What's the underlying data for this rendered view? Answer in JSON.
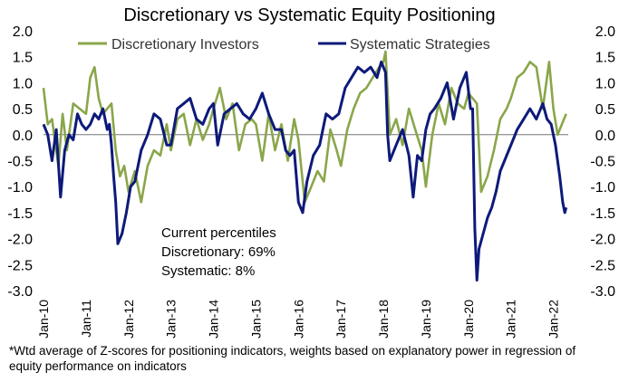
{
  "chart_data": {
    "type": "line",
    "title": "Discretionary  vs Systematic Equity Positioning",
    "ylim": [
      -3.0,
      2.0
    ],
    "y_ticks": [
      "2.0",
      "1.5",
      "1.0",
      "0.5",
      "0.0",
      "-0.5",
      "-1.0",
      "-1.5",
      "-2.0",
      "-2.5",
      "-3.0"
    ],
    "x_range": [
      2010.0,
      2022.35
    ],
    "x_ticks": [
      "Jan-10",
      "Jan-11",
      "Jan-12",
      "Jan-13",
      "Jan-14",
      "Jan-15",
      "Jan-16",
      "Jan-17",
      "Jan-18",
      "Jan-19",
      "Jan-20",
      "Jan-21",
      "Jan-22"
    ],
    "legend": [
      "Discretionary Investors",
      "Systematic Strategies"
    ],
    "colors": {
      "discretionary": "#8aa64a",
      "systematic": "#0d1a7a",
      "zero_line": "#777777"
    },
    "annotation": [
      "Current percentiles",
      "Discretionary: 69%",
      "Systematic: 8%"
    ],
    "series": [
      {
        "name": "Discretionary Investors",
        "x": [
          2010.0,
          2010.1,
          2010.2,
          2010.35,
          2010.45,
          2010.55,
          2010.7,
          2010.85,
          2011.0,
          2011.1,
          2011.2,
          2011.3,
          2011.4,
          2011.5,
          2011.6,
          2011.7,
          2011.8,
          2011.9,
          2012.0,
          2012.15,
          2012.3,
          2012.45,
          2012.6,
          2012.75,
          2012.9,
          2013.0,
          2013.15,
          2013.3,
          2013.45,
          2013.6,
          2013.75,
          2013.9,
          2014.0,
          2014.15,
          2014.3,
          2014.45,
          2014.6,
          2014.75,
          2014.9,
          2015.0,
          2015.15,
          2015.3,
          2015.45,
          2015.6,
          2015.75,
          2015.9,
          2016.0,
          2016.15,
          2016.3,
          2016.45,
          2016.6,
          2016.75,
          2016.9,
          2017.0,
          2017.15,
          2017.3,
          2017.45,
          2017.6,
          2017.75,
          2017.9,
          2018.0,
          2018.05,
          2018.15,
          2018.3,
          2018.45,
          2018.6,
          2018.75,
          2018.9,
          2019.0,
          2019.15,
          2019.3,
          2019.45,
          2019.6,
          2019.75,
          2019.9,
          2020.0,
          2020.1,
          2020.2,
          2020.3,
          2020.45,
          2020.6,
          2020.75,
          2020.9,
          2021.0,
          2021.15,
          2021.3,
          2021.45,
          2021.6,
          2021.75,
          2021.9,
          2022.0,
          2022.1,
          2022.2,
          2022.3
        ],
        "y": [
          0.9,
          0.2,
          0.3,
          -0.6,
          0.4,
          -0.3,
          0.6,
          0.5,
          0.4,
          1.1,
          1.3,
          0.7,
          0.4,
          0.5,
          0.6,
          -0.3,
          -0.8,
          -0.6,
          -1.1,
          -0.7,
          -1.3,
          -0.6,
          -0.3,
          -0.4,
          0.2,
          -0.3,
          0.3,
          0.4,
          -0.2,
          0.3,
          -0.1,
          0.2,
          0.5,
          0.9,
          0.3,
          0.6,
          -0.3,
          0.2,
          0.3,
          0.2,
          -0.5,
          0.4,
          -0.3,
          0.2,
          -0.5,
          0.3,
          -0.1,
          -1.3,
          -1.0,
          -0.7,
          -0.9,
          0.1,
          -0.3,
          -0.6,
          0.1,
          0.5,
          0.8,
          0.9,
          1.1,
          1.3,
          1.4,
          1.6,
          0.0,
          0.3,
          -0.2,
          0.5,
          0.1,
          -0.3,
          -1.0,
          0.0,
          0.6,
          0.2,
          0.9,
          0.6,
          0.5,
          0.8,
          0.7,
          0.6,
          -1.1,
          -0.8,
          -0.3,
          0.3,
          0.5,
          0.7,
          1.1,
          1.2,
          1.4,
          1.3,
          0.5,
          1.4,
          0.5,
          0.0,
          0.2,
          0.4
        ]
      },
      {
        "name": "Systematic Strategies",
        "x": [
          2010.0,
          2010.1,
          2010.2,
          2010.3,
          2010.4,
          2010.5,
          2010.6,
          2010.7,
          2010.8,
          2010.9,
          2011.0,
          2011.1,
          2011.2,
          2011.3,
          2011.4,
          2011.5,
          2011.55,
          2011.6,
          2011.65,
          2011.7,
          2011.75,
          2011.85,
          2011.95,
          2012.05,
          2012.15,
          2012.3,
          2012.45,
          2012.6,
          2012.75,
          2012.9,
          2013.0,
          2013.15,
          2013.3,
          2013.45,
          2013.6,
          2013.75,
          2013.9,
          2014.0,
          2014.1,
          2014.25,
          2014.4,
          2014.55,
          2014.7,
          2014.85,
          2015.0,
          2015.15,
          2015.3,
          2015.45,
          2015.6,
          2015.7,
          2015.8,
          2015.9,
          2016.0,
          2016.1,
          2016.2,
          2016.35,
          2016.5,
          2016.65,
          2016.8,
          2016.95,
          2017.1,
          2017.25,
          2017.4,
          2017.55,
          2017.7,
          2017.85,
          2017.95,
          2018.05,
          2018.1,
          2018.15,
          2018.3,
          2018.45,
          2018.6,
          2018.7,
          2018.8,
          2018.9,
          2019.0,
          2019.1,
          2019.2,
          2019.35,
          2019.5,
          2019.65,
          2019.8,
          2019.95,
          2020.05,
          2020.1,
          2020.15,
          2020.2,
          2020.25,
          2020.35,
          2020.45,
          2020.55,
          2020.65,
          2020.75,
          2020.85,
          2020.95,
          2021.05,
          2021.15,
          2021.3,
          2021.45,
          2021.6,
          2021.75,
          2021.85,
          2021.95,
          2022.05,
          2022.15,
          2022.22,
          2022.27,
          2022.3
        ],
        "y": [
          0.2,
          0.0,
          -0.5,
          0.1,
          -1.2,
          -0.3,
          0.0,
          -0.1,
          0.4,
          0.2,
          0.1,
          0.2,
          0.4,
          0.3,
          0.5,
          0.1,
          0.2,
          -0.2,
          -0.8,
          -1.3,
          -2.1,
          -1.9,
          -1.5,
          -1.0,
          -0.9,
          -0.3,
          0.0,
          0.4,
          0.3,
          -0.2,
          -0.2,
          0.5,
          0.6,
          0.7,
          0.3,
          0.2,
          0.5,
          0.6,
          -0.2,
          0.4,
          0.5,
          0.6,
          0.4,
          0.3,
          0.5,
          0.8,
          0.4,
          0.1,
          0.1,
          -0.3,
          -0.4,
          -0.3,
          -1.3,
          -1.5,
          -0.9,
          -0.4,
          -0.2,
          0.4,
          0.3,
          0.4,
          0.9,
          1.1,
          1.3,
          1.2,
          1.3,
          1.1,
          1.4,
          1.2,
          0.0,
          -0.5,
          -0.2,
          0.1,
          -0.4,
          -1.2,
          -0.4,
          -0.5,
          0.1,
          0.4,
          0.5,
          0.7,
          1.0,
          0.3,
          0.9,
          1.2,
          0.5,
          0.5,
          -1.8,
          -2.8,
          -2.2,
          -1.9,
          -1.6,
          -1.4,
          -1.1,
          -0.7,
          -0.5,
          -0.3,
          -0.1,
          0.1,
          0.3,
          0.5,
          0.3,
          0.6,
          0.3,
          0.2,
          -0.2,
          -0.8,
          -1.3,
          -1.5,
          -1.4
        ]
      }
    ]
  },
  "footnote": "*Wtd average of Z-scores for positioning indicators, weights based on explanatory power in regression of equity performance on indicators"
}
